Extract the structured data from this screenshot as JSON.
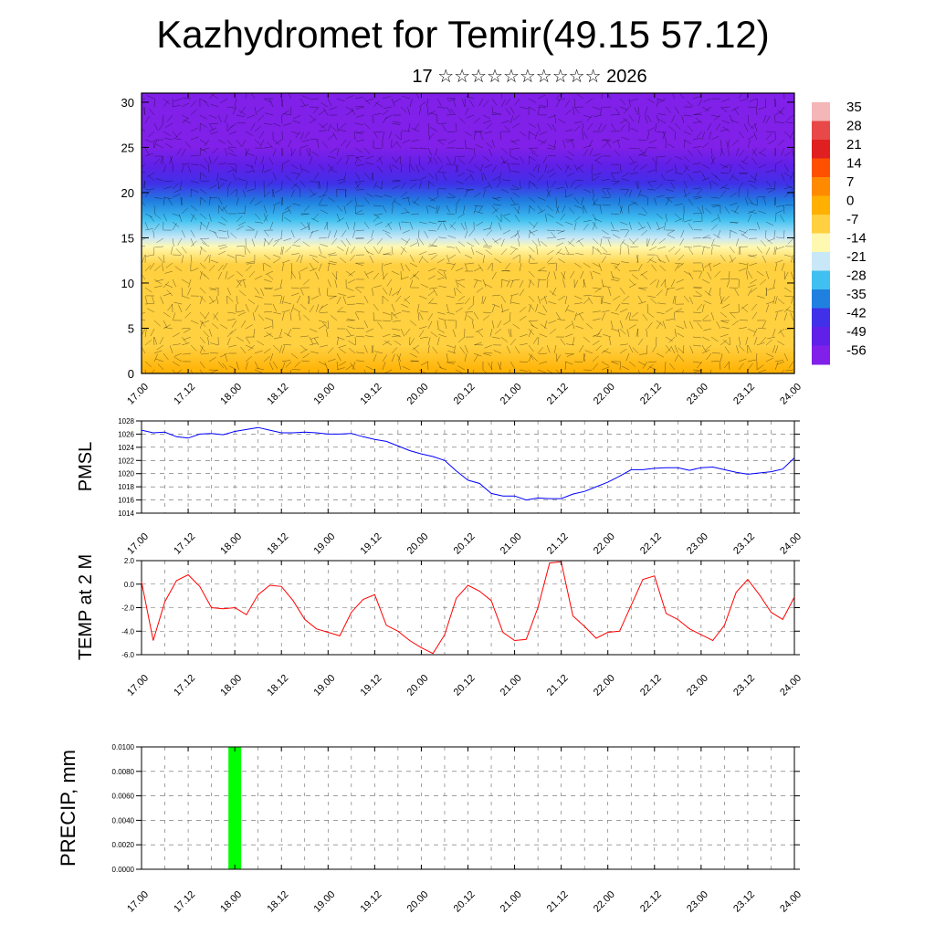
{
  "title": "Kazhydromet for Temir(49.15 57.12)",
  "subtitle": "17 ☆☆☆☆☆☆☆☆☆☆ 2026",
  "time_ticks": [
    "17.00",
    "17.12",
    "18.00",
    "18.12",
    "19.00",
    "19.12",
    "20.00",
    "20.12",
    "21.00",
    "21.12",
    "22.00",
    "22.12",
    "23.00",
    "23.12",
    "24.00"
  ],
  "colors": {
    "pmsl_line": "#0000ff",
    "temp_line": "#ff0000",
    "precip_bar": "#00ff00"
  },
  "chart_data": [
    {
      "type": "heatmap",
      "description_fields": "temperature shading with wind barbs vs height level",
      "xlabel": "",
      "ylabel": "",
      "x_range": [
        17.0,
        24.0
      ],
      "ylim": [
        0,
        31
      ],
      "y_ticks": [
        "0",
        "5",
        "10",
        "15",
        "20",
        "25",
        "30"
      ],
      "colorbar_labels": [
        "35",
        "28",
        "21",
        "14",
        "7",
        "0",
        "-7",
        "-14",
        "-21",
        "-28",
        "-35",
        "-42",
        "-49",
        "-56"
      ],
      "colorbar_colors": [
        "#f4b6b6",
        "#e84848",
        "#e02020",
        "#ff5000",
        "#ff8a00",
        "#ffb000",
        "#ffd040",
        "#fff8b0",
        "#c8e8f8",
        "#40c0f0",
        "#2080e0",
        "#4030e8",
        "#6020e8",
        "#8020e8"
      ],
      "levels": [
        {
          "y": 0,
          "t": -2
        },
        {
          "y": 3,
          "t": -4
        },
        {
          "y": 6,
          "t": -6
        },
        {
          "y": 9,
          "t": -7
        },
        {
          "y": 12,
          "t": -9
        },
        {
          "y": 14,
          "t": -13
        },
        {
          "y": 15,
          "t": -18
        },
        {
          "y": 17,
          "t": -26
        },
        {
          "y": 19,
          "t": -35
        },
        {
          "y": 21,
          "t": -45
        },
        {
          "y": 23,
          "t": -52
        },
        {
          "y": 25,
          "t": -55
        },
        {
          "y": 27,
          "t": -57
        },
        {
          "y": 31,
          "t": -58
        }
      ]
    },
    {
      "type": "line",
      "ylabel": "PMSL",
      "ylim": [
        1014,
        1028
      ],
      "y_ticks": [
        "1028",
        "1026",
        "1024",
        "1022",
        "1020",
        "1018",
        "1016",
        "1014"
      ],
      "series": [
        {
          "name": "",
          "x": [
            17.0,
            17.125,
            17.25,
            17.375,
            17.5,
            17.625,
            17.75,
            17.875,
            18.0,
            18.125,
            18.25,
            18.375,
            18.5,
            18.625,
            18.75,
            18.875,
            19.0,
            19.125,
            19.25,
            19.375,
            19.5,
            19.625,
            19.75,
            19.875,
            20.0,
            20.125,
            20.25,
            20.375,
            20.5,
            20.625,
            20.75,
            20.875,
            21.0,
            21.125,
            21.25,
            21.375,
            21.5,
            21.625,
            21.75,
            21.875,
            22.0,
            22.125,
            22.25,
            22.375,
            22.5,
            22.625,
            22.75,
            22.875,
            23.0,
            23.125,
            23.25,
            23.375,
            23.5,
            23.625,
            23.75,
            23.875,
            24.0
          ],
          "values": [
            1026.6,
            1026.2,
            1026.3,
            1025.6,
            1025.4,
            1026.0,
            1026.1,
            1025.9,
            1026.4,
            1026.7,
            1027.0,
            1026.6,
            1026.2,
            1026.2,
            1026.3,
            1026.2,
            1026.0,
            1026.0,
            1026.1,
            1025.6,
            1025.2,
            1024.9,
            1024.2,
            1023.5,
            1023.0,
            1022.6,
            1022.0,
            1020.4,
            1019.0,
            1018.5,
            1017.0,
            1016.6,
            1016.6,
            1016.0,
            1016.3,
            1016.2,
            1016.2,
            1016.9,
            1017.3,
            1018.0,
            1018.7,
            1019.6,
            1020.6,
            1020.6,
            1020.8,
            1020.9,
            1020.9,
            1020.5,
            1020.9,
            1021.0,
            1020.6,
            1020.2,
            1019.9,
            1020.1,
            1020.3,
            1020.7,
            1022.4
          ]
        }
      ]
    },
    {
      "type": "line",
      "ylabel": "TEMP at 2 M",
      "ylim": [
        -6,
        2
      ],
      "y_ticks": [
        "2.0",
        "0.0",
        "-2.0",
        "-4.0",
        "-6.0"
      ],
      "series": [
        {
          "name": "",
          "x": [
            17.0,
            17.125,
            17.25,
            17.375,
            17.5,
            17.625,
            17.75,
            17.875,
            18.0,
            18.125,
            18.25,
            18.375,
            18.5,
            18.625,
            18.75,
            18.875,
            19.0,
            19.125,
            19.25,
            19.375,
            19.5,
            19.625,
            19.75,
            19.875,
            20.0,
            20.125,
            20.25,
            20.375,
            20.5,
            20.625,
            20.75,
            20.875,
            21.0,
            21.125,
            21.25,
            21.375,
            21.5,
            21.625,
            21.75,
            21.875,
            22.0,
            22.125,
            22.25,
            22.375,
            22.5,
            22.625,
            22.75,
            22.875,
            23.0,
            23.125,
            23.25,
            23.375,
            23.5,
            23.625,
            23.75,
            23.875,
            24.0
          ],
          "values": [
            0.2,
            -4.8,
            -1.5,
            0.3,
            0.8,
            -0.2,
            -2.0,
            -2.1,
            -2.0,
            -2.6,
            -0.9,
            -0.1,
            -0.2,
            -1.4,
            -3.0,
            -3.8,
            -4.1,
            -4.4,
            -2.4,
            -1.3,
            -0.9,
            -3.5,
            -4.0,
            -4.8,
            -5.4,
            -5.9,
            -4.3,
            -1.2,
            -0.1,
            -0.6,
            -1.4,
            -4.1,
            -4.8,
            -4.7,
            -2.0,
            1.8,
            1.9,
            -2.7,
            -3.6,
            -4.6,
            -4.1,
            -4.0,
            -1.8,
            0.4,
            0.7,
            -2.5,
            -3.0,
            -3.8,
            -4.3,
            -4.8,
            -3.5,
            -0.7,
            0.4,
            -0.9,
            -2.4,
            -3.0,
            -1.1
          ]
        }
      ]
    },
    {
      "type": "bar",
      "ylabel": "PRECIP, mm",
      "ylim": [
        0,
        0.01
      ],
      "y_ticks": [
        "0.0100",
        "0.0080",
        "0.0060",
        "0.0040",
        "0.0020",
        "0.0000"
      ],
      "bars": [
        {
          "x": 18.0,
          "value": 0.01
        }
      ]
    }
  ]
}
